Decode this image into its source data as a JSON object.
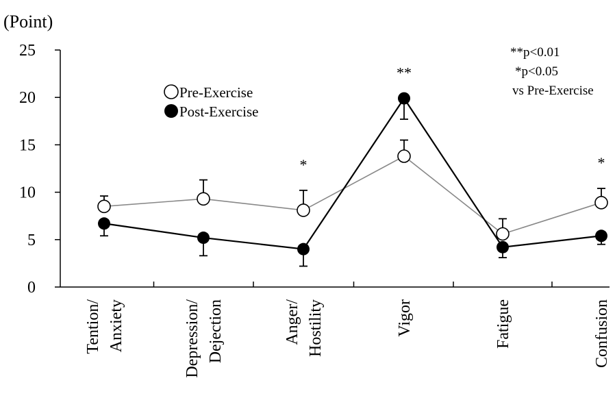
{
  "chart_data": {
    "type": "line",
    "ylabel": "(Point)",
    "ylim": [
      0,
      25
    ],
    "yticks": [
      0,
      5,
      10,
      15,
      20,
      25
    ],
    "grid": false,
    "legend_placement": "top-left",
    "categories": [
      [
        "Tention/",
        "Anxiety"
      ],
      [
        "Depression/",
        "Dejection"
      ],
      [
        "Anger/",
        "Hostility"
      ],
      [
        "Vigor"
      ],
      [
        "Fatigue"
      ],
      [
        "Confusion"
      ]
    ],
    "series": [
      {
        "name": "Pre-Exercise",
        "marker": "open-circle",
        "line_color": "#888888",
        "values": [
          8.5,
          9.3,
          8.1,
          13.8,
          5.6,
          8.9
        ],
        "error_bars": [
          1.1,
          2.0,
          2.1,
          1.7,
          1.6,
          1.5
        ],
        "error_direction": "up"
      },
      {
        "name": "Post-Exercise",
        "marker": "filled-circle",
        "line_color": "#000000",
        "values": [
          6.7,
          5.2,
          4.0,
          19.9,
          4.2,
          5.4
        ],
        "error_bars": [
          1.3,
          1.9,
          1.8,
          2.2,
          1.1,
          0.9
        ],
        "error_direction": "down"
      }
    ],
    "significance_marks": [
      "",
      "",
      "*",
      "**",
      "",
      "*"
    ],
    "annotation": [
      "**p<0.01",
      "*p<0.05",
      "vs Pre-Exercise"
    ]
  }
}
